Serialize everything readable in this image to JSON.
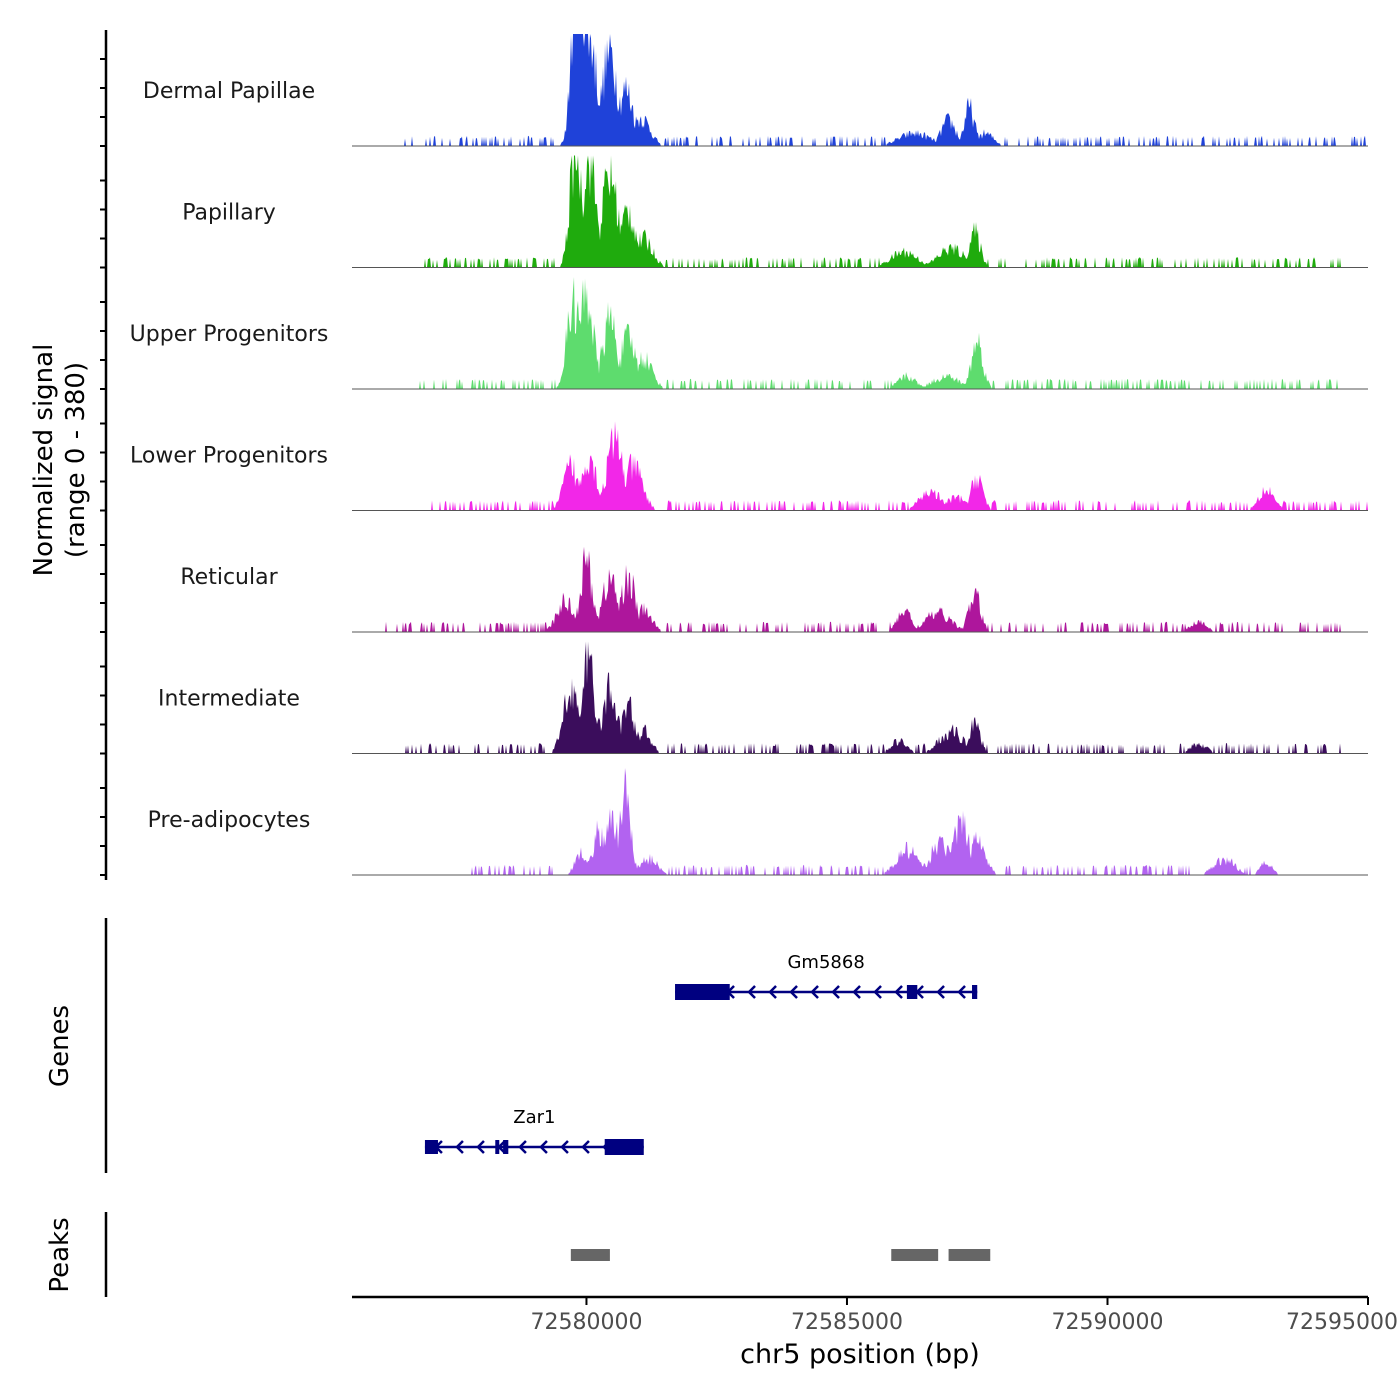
{
  "chart_data": {
    "type": "area",
    "title": "",
    "xlabel": "chr5 position (bp)",
    "ylabel_line1": "Normalized signal",
    "ylabel_line2": "(range 0 - 380)",
    "xlim": [
      72575500,
      72595000
    ],
    "x_ticks": [
      72580000,
      72585000,
      72590000,
      72595000
    ],
    "x_tick_labels": [
      "72580000",
      "72585000",
      "72590000",
      "72595000"
    ],
    "signal_range": [
      0,
      380
    ],
    "tracks": [
      {
        "name": "Dermal Papillae",
        "color": "#1f42d9",
        "peaks": [
          [
            72579850,
            380,
            110
          ],
          [
            72580000,
            200,
            180
          ],
          [
            72580450,
            150,
            150
          ],
          [
            72580750,
            90,
            150
          ],
          [
            72581050,
            45,
            170
          ],
          [
            72586300,
            20,
            300
          ],
          [
            72586950,
            40,
            140
          ],
          [
            72587350,
            60,
            100
          ],
          [
            72587650,
            20,
            160
          ]
        ],
        "noise_ranges": [
          [
            72576500,
            72579400
          ],
          [
            72581500,
            72595000
          ]
        ]
      },
      {
        "name": "Papillary",
        "color": "#1fab0d",
        "peaks": [
          [
            72579800,
            200,
            110
          ],
          [
            72580050,
            180,
            130
          ],
          [
            72580450,
            150,
            150
          ],
          [
            72580800,
            90,
            150
          ],
          [
            72581100,
            45,
            170
          ],
          [
            72586100,
            25,
            250
          ],
          [
            72587000,
            30,
            250
          ],
          [
            72587450,
            55,
            110
          ]
        ],
        "noise_ranges": [
          [
            72576800,
            72579400
          ],
          [
            72581500,
            72594500
          ]
        ]
      },
      {
        "name": "Upper Progenitors",
        "color": "#5edc6e",
        "peaks": [
          [
            72579750,
            145,
            120
          ],
          [
            72580000,
            155,
            130
          ],
          [
            72580450,
            110,
            140
          ],
          [
            72580800,
            80,
            150
          ],
          [
            72581100,
            50,
            160
          ],
          [
            72586150,
            20,
            170
          ],
          [
            72586900,
            20,
            250
          ],
          [
            72587500,
            75,
            110
          ]
        ],
        "noise_ranges": [
          [
            72576800,
            72579400
          ],
          [
            72581500,
            72594500
          ]
        ]
      },
      {
        "name": "Lower Progenitors",
        "color": "#f227e8",
        "peaks": [
          [
            72579700,
            70,
            140
          ],
          [
            72580050,
            90,
            140
          ],
          [
            72580550,
            110,
            160
          ],
          [
            72580900,
            70,
            170
          ],
          [
            72586600,
            30,
            200
          ],
          [
            72587100,
            20,
            200
          ],
          [
            72587500,
            55,
            110
          ],
          [
            72593050,
            35,
            150
          ]
        ],
        "noise_ranges": [
          [
            72577000,
            72579400
          ],
          [
            72581500,
            72595000
          ]
        ]
      },
      {
        "name": "Reticular",
        "color": "#ae169c",
        "peaks": [
          [
            72579600,
            50,
            160
          ],
          [
            72580000,
            110,
            120
          ],
          [
            72580450,
            85,
            140
          ],
          [
            72580800,
            90,
            130
          ],
          [
            72581100,
            35,
            150
          ],
          [
            72586100,
            35,
            130
          ],
          [
            72586750,
            30,
            250
          ],
          [
            72587450,
            60,
            110
          ],
          [
            72591750,
            15,
            160
          ]
        ],
        "noise_ranges": [
          [
            72576000,
            72579400
          ],
          [
            72581500,
            72594500
          ]
        ]
      },
      {
        "name": "Intermediate",
        "color": "#3b0d5c",
        "peaks": [
          [
            72579700,
            110,
            140
          ],
          [
            72580050,
            150,
            120
          ],
          [
            72580450,
            100,
            140
          ],
          [
            72580800,
            75,
            140
          ],
          [
            72581100,
            35,
            140
          ],
          [
            72586000,
            20,
            150
          ],
          [
            72587000,
            35,
            230
          ],
          [
            72587450,
            55,
            100
          ],
          [
            72591750,
            15,
            160
          ]
        ],
        "noise_ranges": [
          [
            72576500,
            72579400
          ],
          [
            72581500,
            72594500
          ]
        ]
      },
      {
        "name": "Pre-adipocytes",
        "color": "#b263f0",
        "peaks": [
          [
            72579900,
            40,
            110
          ],
          [
            72580250,
            70,
            120
          ],
          [
            72580500,
            90,
            120
          ],
          [
            72580750,
            135,
            100
          ],
          [
            72581200,
            25,
            180
          ],
          [
            72586150,
            40,
            200
          ],
          [
            72586800,
            50,
            200
          ],
          [
            72587200,
            80,
            160
          ],
          [
            72587500,
            60,
            150
          ],
          [
            72592250,
            25,
            200
          ],
          [
            72593050,
            20,
            120
          ]
        ],
        "noise_ranges": [
          [
            72577800,
            72579400
          ],
          [
            72581500,
            72593300
          ]
        ]
      }
    ],
    "genes": [
      {
        "name": "Gm5868",
        "strand": "-",
        "start": 72581700,
        "end": 72587500,
        "exons": [
          [
            72581700,
            72582750
          ],
          [
            72586150,
            72586350
          ],
          [
            72587400,
            72587500
          ]
        ]
      },
      {
        "name": "Zar1",
        "strand": "-",
        "start": 72576900,
        "end": 72581100,
        "exons": [
          [
            72576900,
            72577150
          ],
          [
            72578250,
            72578300
          ],
          [
            72578400,
            72578500
          ],
          [
            72580350,
            72581100
          ]
        ]
      }
    ],
    "peaks_track_label": "Peaks",
    "genes_track_label": "Genes",
    "peak_regions": [
      [
        72579700,
        72580450
      ],
      [
        72585850,
        72586750
      ],
      [
        72586950,
        72587750
      ]
    ],
    "colors": {
      "gene": "#000080",
      "peak_region": "#666666",
      "baseline": "#555555",
      "axis": "#000000"
    }
  }
}
